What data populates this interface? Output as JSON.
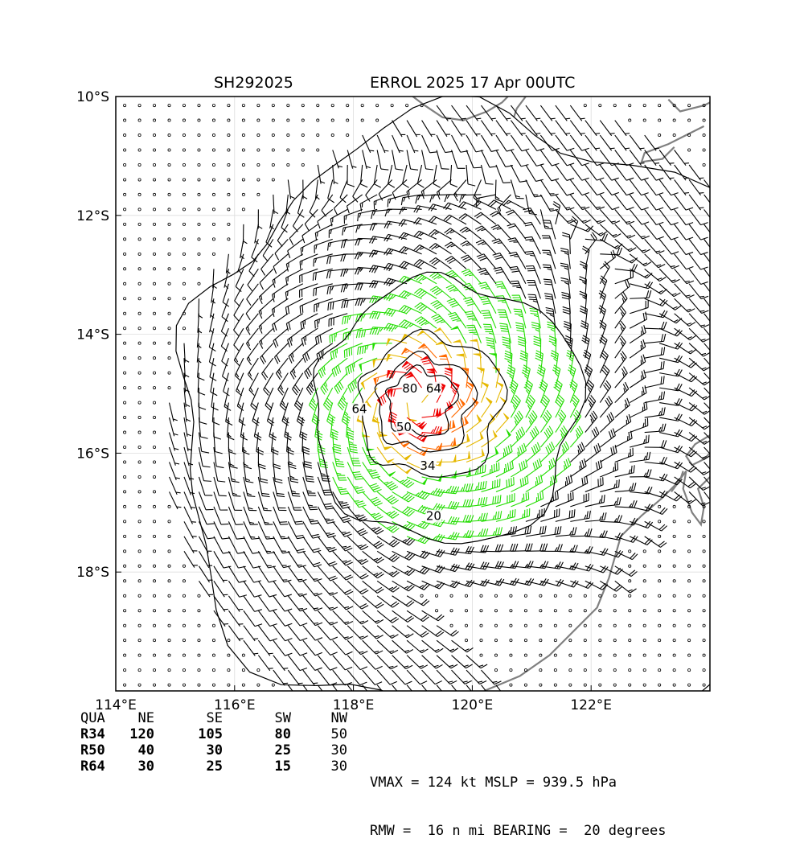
{
  "title": {
    "left": "SH292025",
    "right": "ERROL 2025 17 Apr 00UTC"
  },
  "map": {
    "lon_range": [
      114,
      124
    ],
    "lat_range": [
      -20,
      -10
    ],
    "lon_ticks": [
      {
        "value": 114,
        "label": "114°E"
      },
      {
        "value": 116,
        "label": "116°E"
      },
      {
        "value": 118,
        "label": "118°E"
      },
      {
        "value": 120,
        "label": "120°E"
      },
      {
        "value": 122,
        "label": "122°E"
      }
    ],
    "lat_ticks": [
      {
        "value": -10,
        "label": "10°S"
      },
      {
        "value": -12,
        "label": "12°S"
      },
      {
        "value": -14,
        "label": "14°S"
      },
      {
        "value": -16,
        "label": "16°S"
      },
      {
        "value": -18,
        "label": "18°S"
      }
    ],
    "grid": true,
    "storm_center": {
      "lon": 119.0,
      "lat": -15.1
    },
    "contour_labels": [
      {
        "text": "20",
        "lon": 119.35,
        "lat": -17.1
      },
      {
        "text": "34",
        "lon": 119.25,
        "lat": -16.25
      },
      {
        "text": "50",
        "lon": 118.85,
        "lat": -15.6
      },
      {
        "text": "64",
        "lon": 118.1,
        "lat": -15.3
      },
      {
        "text": "80",
        "lon": 118.95,
        "lat": -14.95
      },
      {
        "text": "64",
        "lon": 119.35,
        "lat": -14.95
      }
    ],
    "barb_colors": {
      "calm": "#000000",
      "lt34": "#000000",
      "r34": "#22dd00",
      "r50": "#e6b800",
      "r64": "#ff6a00",
      "r80": "#ee0000"
    },
    "coast_color": "#808080"
  },
  "wind_radii": {
    "header": [
      "QUA",
      "NE",
      "SE",
      "SW",
      "NW"
    ],
    "rows": [
      [
        "R34",
        "120",
        "105",
        "80",
        "50"
      ],
      [
        "R50",
        "40",
        "30",
        "25",
        "30"
      ],
      [
        "R64",
        "30",
        "25",
        "15",
        "30"
      ]
    ]
  },
  "stats": {
    "line1": "VMAX = 124 kt MSLP = 939.5 hPa",
    "line2": "RMW =  16 n mi BEARING =  20 degrees"
  }
}
